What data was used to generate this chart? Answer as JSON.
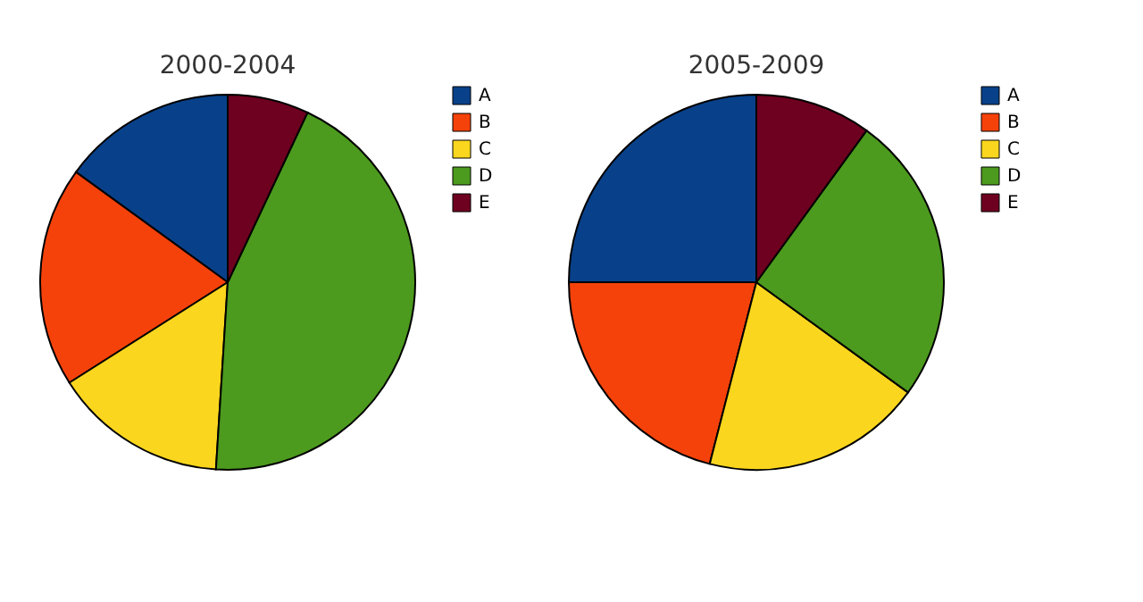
{
  "chart_data": [
    {
      "type": "pie",
      "title": "2000-2004",
      "categories": [
        "A",
        "B",
        "C",
        "D",
        "E"
      ],
      "values": [
        15,
        19,
        15,
        44,
        7
      ],
      "colors": [
        "#08418a",
        "#f5420a",
        "#fad61e",
        "#4c9a1e",
        "#6e0020"
      ],
      "legend": "right"
    },
    {
      "type": "pie",
      "title": "2005-2009",
      "categories": [
        "A",
        "B",
        "C",
        "D",
        "E"
      ],
      "values": [
        25,
        21,
        19,
        25,
        10
      ],
      "colors": [
        "#08418a",
        "#f5420a",
        "#fad61e",
        "#4c9a1e",
        "#6e0020"
      ],
      "legend": "right"
    }
  ]
}
